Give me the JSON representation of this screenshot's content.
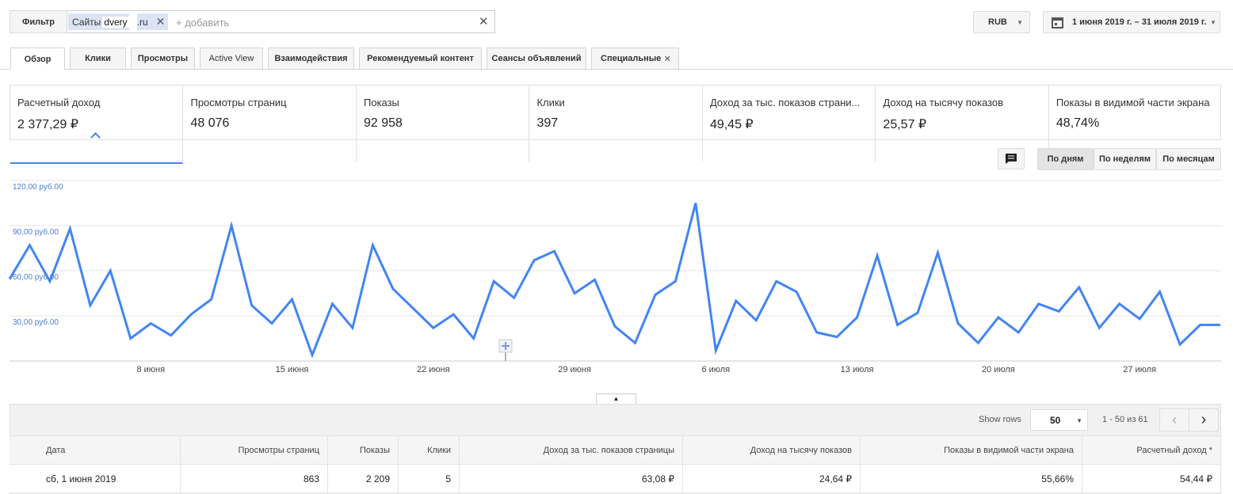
{
  "filter": {
    "button": "Фильтр",
    "chip": [
      "Сайты",
      "dvery",
      ".ru"
    ],
    "placeholder": "+ добавить"
  },
  "currency": "RUB",
  "date_range": "1 июня 2019 г. – 31 июля 2019 г.",
  "tabs": [
    "Обзор",
    "Клики",
    "Просмотры",
    "Active View",
    "Взаимодействия",
    "Рекомендуемый контент",
    "Сеансы объявлений",
    "Специальные"
  ],
  "metrics": [
    {
      "label": "Расчетный доход",
      "value": "2 377,29 ₽"
    },
    {
      "label": "Просмотры страниц",
      "value": "48 076"
    },
    {
      "label": "Показы",
      "value": "92 958"
    },
    {
      "label": "Клики",
      "value": "397"
    },
    {
      "label": "Доход за тыс. показов страни...",
      "value": "49,45 ₽"
    },
    {
      "label": "Доход на тысячу показов",
      "value": "25,57 ₽"
    },
    {
      "label": "Показы в видимой части экрана",
      "value": "48,74%"
    }
  ],
  "granularity": [
    "По дням",
    "По неделям",
    "По месяцам"
  ],
  "chart_data": {
    "type": "line",
    "color": "#4285f4",
    "categories": [
      null,
      null,
      null,
      null,
      null,
      null,
      null,
      "8 июня",
      null,
      null,
      null,
      null,
      null,
      null,
      "15 июня",
      null,
      null,
      null,
      null,
      null,
      null,
      "22 июня",
      null,
      null,
      null,
      null,
      null,
      null,
      "29 июня",
      null,
      null,
      null,
      null,
      null,
      null,
      "6 июля",
      null,
      null,
      null,
      null,
      null,
      null,
      "13 июля",
      null,
      null,
      null,
      null,
      null,
      null,
      "20 июля",
      null,
      null,
      null,
      null,
      null,
      null,
      "27 июля",
      null,
      null,
      null,
      null
    ],
    "values": [
      54.44,
      77,
      53,
      88,
      37,
      60,
      15,
      25,
      17,
      31,
      41,
      90,
      37,
      25,
      41,
      4,
      38,
      22,
      77,
      48,
      35,
      22,
      31,
      15,
      53,
      42,
      67,
      73,
      45,
      54,
      23,
      12,
      44,
      53,
      105,
      7,
      40,
      27,
      53,
      46,
      19,
      16,
      29,
      70,
      24,
      32,
      72,
      25,
      12,
      29,
      19,
      38,
      33,
      49,
      22,
      38,
      28,
      46,
      11,
      24,
      24
    ],
    "ylim": [
      0,
      120
    ],
    "yticks": [
      {
        "value": 30,
        "label": "30,00 руб.00"
      },
      {
        "value": 60,
        "label": "60,00 руб.00"
      },
      {
        "value": 90,
        "label": "90,00 руб.00"
      },
      {
        "value": 120,
        "label": "120,00 руб.00"
      }
    ],
    "grid": true
  },
  "table": {
    "show_rows_label": "Show rows",
    "rows_per_page": 50,
    "pagination": "1 - 50 из 61",
    "columns": [
      "Дата",
      "Просмотры страниц",
      "Показы",
      "Клики",
      "Доход за тыс. показов страницы",
      "Доход на тысячу показов",
      "Показы в видимой части экрана",
      "Расчетный доход *"
    ],
    "rows": [
      [
        "сб, 1 июня 2019",
        "863",
        "2 209",
        "5",
        "63,08 ₽",
        "24,64 ₽",
        "55,66%",
        "54,44 ₽"
      ]
    ]
  }
}
